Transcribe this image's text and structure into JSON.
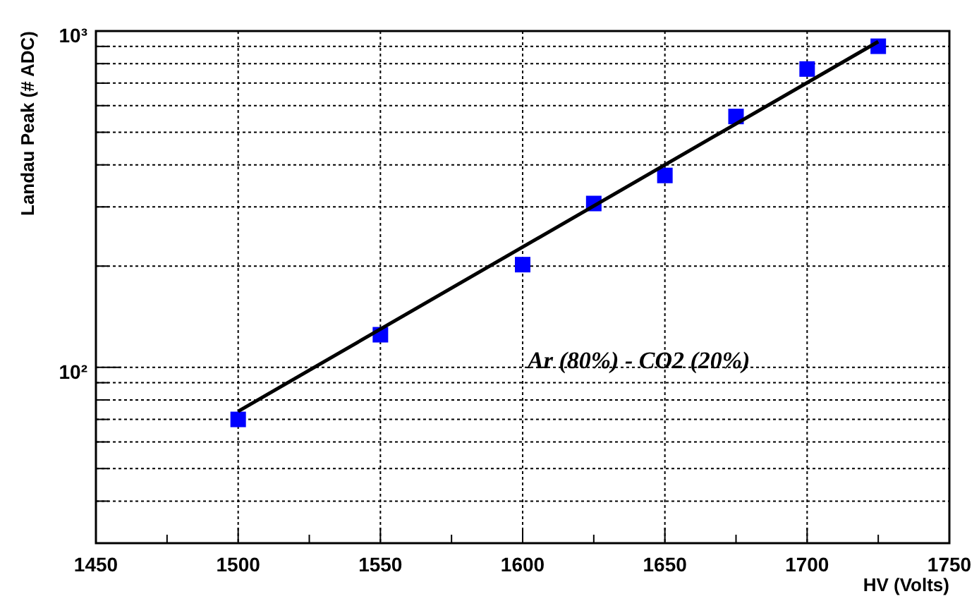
{
  "chart_data": {
    "type": "scatter",
    "xlabel": "HV (Volts)",
    "ylabel": "Landau Peak (# ADC)",
    "log": "y",
    "grid": true,
    "marker": "square",
    "xlim": [
      1450,
      1750
    ],
    "xticks": [
      1450,
      1500,
      1550,
      1600,
      1650,
      1700,
      1750
    ],
    "ylim": [
      30,
      1000
    ],
    "yticks": [
      {
        "value": 40,
        "label": null
      },
      {
        "value": 50,
        "label": null
      },
      {
        "value": 60,
        "label": null
      },
      {
        "value": 70,
        "label": null
      },
      {
        "value": 80,
        "label": null
      },
      {
        "value": 90,
        "label": null
      },
      {
        "value": 100,
        "label": "10²"
      },
      {
        "value": 200,
        "label": null
      },
      {
        "value": 300,
        "label": null
      },
      {
        "value": 400,
        "label": null
      },
      {
        "value": 500,
        "label": null
      },
      {
        "value": 600,
        "label": null
      },
      {
        "value": 700,
        "label": null
      },
      {
        "value": 800,
        "label": null
      },
      {
        "value": 900,
        "label": null
      },
      {
        "value": 1000,
        "label": "10³"
      }
    ],
    "x": [
      1500,
      1550,
      1600,
      1625,
      1650,
      1675,
      1700,
      1725
    ],
    "series": [
      {
        "type": "scatter",
        "color": "#0000ff",
        "values": [
          70,
          125,
          202,
          307,
          372,
          557,
          771,
          901
        ]
      },
      {
        "type": "line",
        "color": "#000000",
        "marker": "none",
        "x": [
          1500,
          1725
        ],
        "values": [
          74,
          930
        ]
      }
    ],
    "annotations": [
      "Ar (80%) - CO2 (20%)"
    ]
  }
}
